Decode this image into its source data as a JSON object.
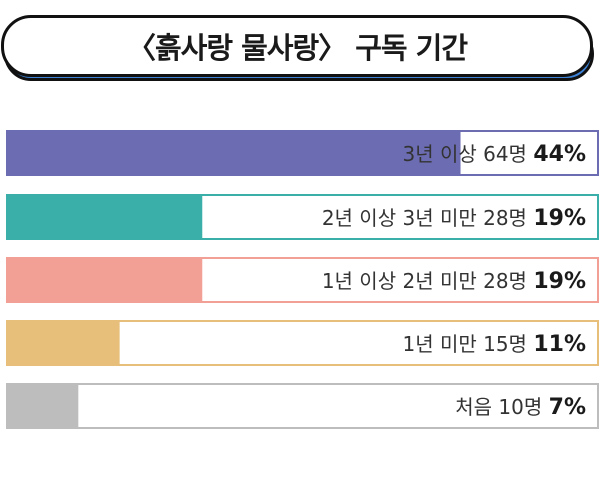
{
  "title": "〈흙사랑 물사랑〉 구독 기간",
  "chart_data": {
    "type": "bar",
    "orientation": "horizontal",
    "title": "〈흙사랑 물사랑〉 구독 기간",
    "xlim": [
      0,
      100
    ],
    "unit": "%",
    "categories": [
      "3년 이상",
      "2년 이상 3년 미만",
      "1년 이상 2년 미만",
      "1년 미만",
      "처음"
    ],
    "counts": [
      "64명",
      "28명",
      "28명",
      "15명",
      "10명"
    ],
    "values": [
      44,
      19,
      19,
      11,
      7
    ],
    "value_labels": [
      "44%",
      "19%",
      "19%",
      "11%",
      "7%"
    ],
    "colors": [
      "#6c6cb3",
      "#3aafa9",
      "#f2a096",
      "#e8bf7a",
      "#bdbdbd"
    ],
    "grid": false,
    "legend": "none"
  }
}
